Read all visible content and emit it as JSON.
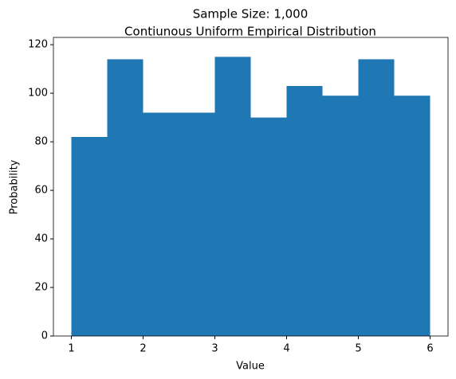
{
  "chart_data": {
    "type": "histogram",
    "title": "Sample Size: 1,000",
    "subtitle": "Contiunous Uniform Empirical Distribution",
    "x_label": "Value",
    "y_label": "Probability",
    "bins": [
      1.0,
      1.5,
      2.0,
      2.5,
      3.0,
      3.5,
      4.0,
      4.5,
      5.0,
      5.5,
      6.0
    ],
    "values": [
      82,
      114,
      92,
      92,
      115,
      90,
      103,
      99,
      114,
      99
    ],
    "color": "#1f77b4",
    "xlim": [
      0.75,
      6.25
    ],
    "xticks": [
      1,
      2,
      3,
      4,
      5,
      6
    ],
    "ylim": [
      0,
      123
    ],
    "yticks": [
      0,
      20,
      40,
      60,
      80,
      100,
      120
    ]
  }
}
